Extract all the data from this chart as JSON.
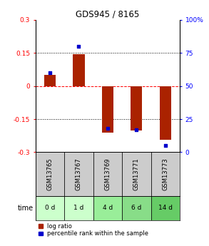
{
  "title": "GDS945 / 8165",
  "samples": [
    "GSM13765",
    "GSM13767",
    "GSM13769",
    "GSM13771",
    "GSM13773"
  ],
  "time_labels": [
    "0 d",
    "1 d",
    "4 d",
    "6 d",
    "14 d"
  ],
  "log_ratios": [
    0.05,
    0.145,
    -0.21,
    -0.2,
    -0.245
  ],
  "percentile_ranks": [
    60,
    80,
    18,
    17,
    5
  ],
  "bar_color": "#aa2200",
  "dot_color": "#0000cc",
  "ylim": [
    -0.3,
    0.3
  ],
  "yticks_left": [
    -0.3,
    -0.15,
    0,
    0.15,
    0.3
  ],
  "yticks_right": [
    0,
    25,
    50,
    75,
    100
  ],
  "hlines_dotted": [
    -0.15,
    0.15
  ],
  "background_color": "#ffffff",
  "plot_bg": "#ffffff",
  "sample_bg": "#cccccc",
  "time_bg_colors": [
    "#ccffcc",
    "#ccffcc",
    "#99ee99",
    "#88dd88",
    "#66cc66"
  ],
  "legend_log_ratio": "log ratio",
  "legend_percentile": "percentile rank within the sample",
  "bar_width": 0.4
}
